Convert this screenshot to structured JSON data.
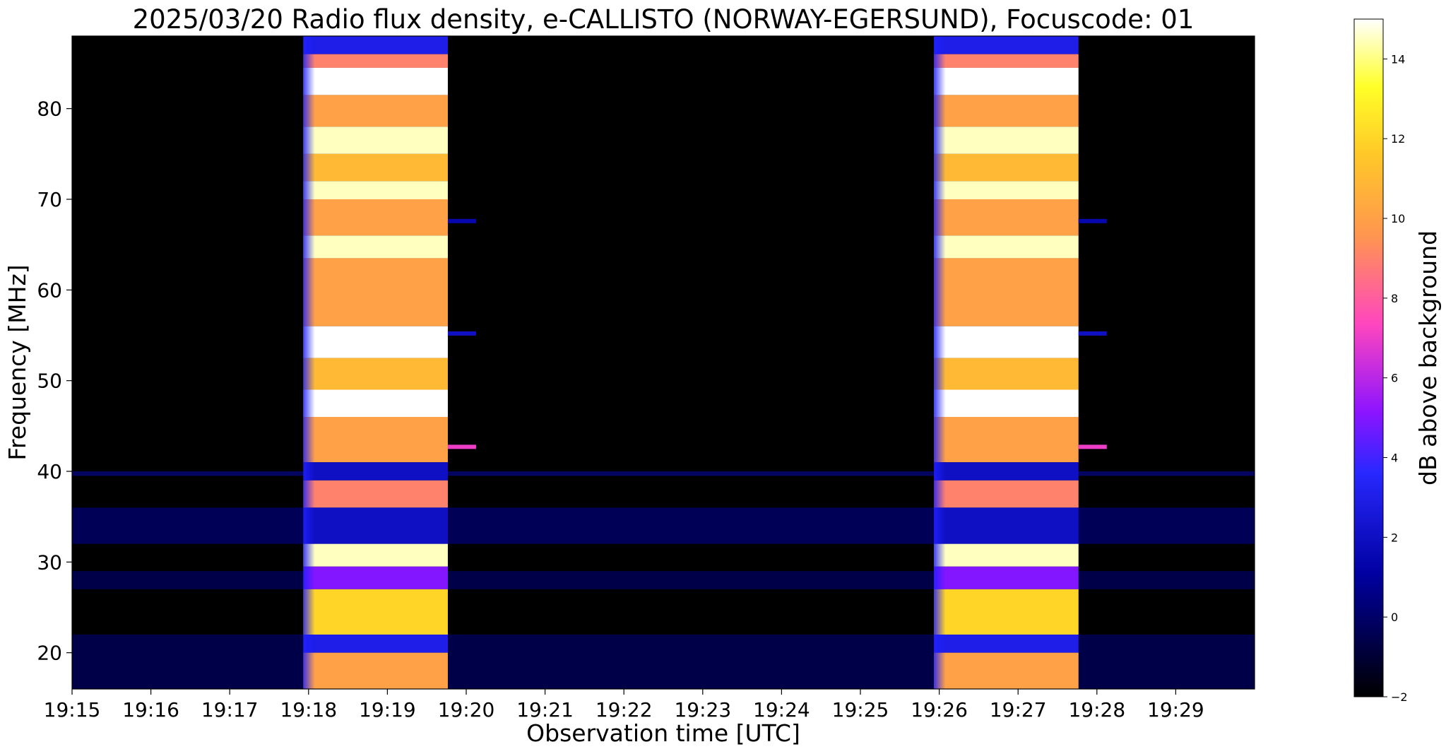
{
  "chart_data": {
    "type": "heatmap",
    "title": "2025/03/20  Radio flux density, e-CALLISTO (NORWAY-EGERSUND), Focuscode: 01",
    "xlabel": "Observation time [UTC]",
    "ylabel": "Frequency [MHz]",
    "colorbar_label": "dB above background",
    "colormap": "gnuplot2",
    "x_ticks": [
      "19:15",
      "19:16",
      "19:17",
      "19:18",
      "19:19",
      "19:20",
      "19:21",
      "19:22",
      "19:23",
      "19:24",
      "19:25",
      "19:26",
      "19:27",
      "19:28",
      "19:29"
    ],
    "x_range_minutes": [
      0,
      15
    ],
    "y_ticks": [
      20,
      30,
      40,
      50,
      60,
      70,
      80
    ],
    "ylim": [
      16,
      88
    ],
    "colorbar_ticks": [
      -2,
      0,
      2,
      4,
      6,
      8,
      10,
      12,
      14
    ],
    "colorbar_range": [
      -2,
      15
    ],
    "bursts": [
      {
        "start": "19:17:56",
        "end": "19:19:46"
      },
      {
        "start": "19:25:56",
        "end": "19:27:46"
      }
    ],
    "burst_bands_mhz": [
      {
        "from": 86,
        "to": 88,
        "db": 3
      },
      {
        "from": 84.5,
        "to": 86,
        "db": 9
      },
      {
        "from": 81.5,
        "to": 84.5,
        "db": 15
      },
      {
        "from": 78,
        "to": 81.5,
        "db": 10
      },
      {
        "from": 75,
        "to": 78,
        "db": 14.5
      },
      {
        "from": 72,
        "to": 75,
        "db": 11
      },
      {
        "from": 70,
        "to": 72,
        "db": 14.5
      },
      {
        "from": 66,
        "to": 70,
        "db": 10
      },
      {
        "from": 63.5,
        "to": 66,
        "db": 14.5
      },
      {
        "from": 56,
        "to": 63.5,
        "db": 10
      },
      {
        "from": 52.5,
        "to": 56,
        "db": 15
      },
      {
        "from": 49,
        "to": 52.5,
        "db": 11
      },
      {
        "from": 46,
        "to": 49,
        "db": 15
      },
      {
        "from": 41,
        "to": 46,
        "db": 10
      },
      {
        "from": 39,
        "to": 41,
        "db": 2
      },
      {
        "from": 36,
        "to": 39,
        "db": 9
      },
      {
        "from": 32,
        "to": 36,
        "db": 2
      },
      {
        "from": 29.5,
        "to": 32,
        "db": 14.5
      },
      {
        "from": 27,
        "to": 29.5,
        "db": 5
      },
      {
        "from": 22,
        "to": 27,
        "db": 12
      },
      {
        "from": 20,
        "to": 22,
        "db": 3
      },
      {
        "from": 16,
        "to": 20,
        "db": 10
      }
    ],
    "background_bands_mhz": [
      {
        "from": 32,
        "to": 36,
        "db": 1
      },
      {
        "from": 39.5,
        "to": 40,
        "db": 1.5
      },
      {
        "from": 27,
        "to": 29,
        "db": 0.5
      },
      {
        "from": 16,
        "to": 22,
        "db": 0.5
      }
    ],
    "post_burst_marks_mhz": [
      {
        "freq": 67.6,
        "db": 1.5
      },
      {
        "freq": 55.2,
        "db": 2
      },
      {
        "freq": 42.7,
        "db": 7
      }
    ]
  }
}
